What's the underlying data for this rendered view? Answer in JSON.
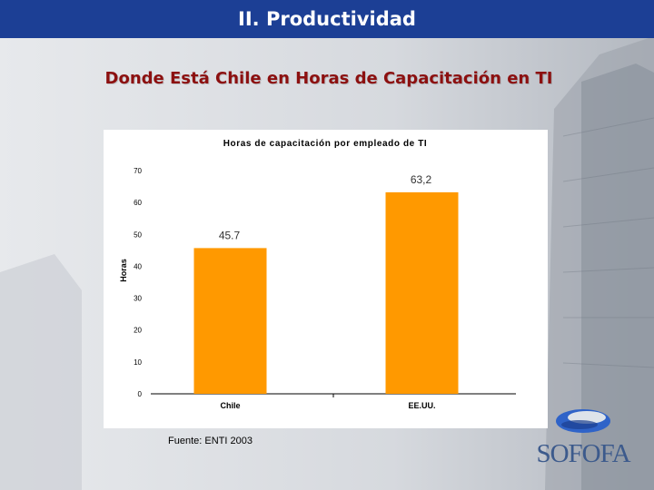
{
  "header": {
    "title": "II. Productividad"
  },
  "slide": {
    "subtitle": "Donde Está Chile en Horas de Capacitación en TI",
    "source": "Fuente: ENTI 2003",
    "logo_text": "SOFOFA"
  },
  "colors": {
    "header_bg": "#1c3f95",
    "subtitle": "#8c1010",
    "bar": "#ff9900",
    "logo": "#3c5a8c"
  },
  "chart_data": {
    "type": "bar",
    "title": "Horas de capacitación por empleado de TI",
    "ylabel": "Horas",
    "xlabel": "",
    "categories": [
      "Chile",
      "EE.UU."
    ],
    "values": [
      45.7,
      63.2
    ],
    "value_labels": [
      "45.7",
      "63,2"
    ],
    "ylim": [
      0,
      70
    ],
    "yticks": [
      0,
      10,
      20,
      30,
      40,
      50,
      60,
      70
    ],
    "grid": false,
    "legend": "none"
  }
}
